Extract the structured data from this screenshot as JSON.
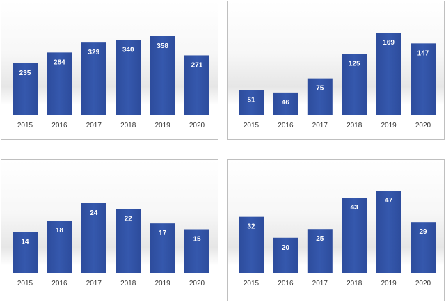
{
  "chart_data": [
    {
      "type": "bar",
      "categories": [
        "2015",
        "2016",
        "2017",
        "2018",
        "2019",
        "2020"
      ],
      "values": [
        235,
        284,
        329,
        340,
        358,
        271
      ],
      "ylim": [
        0,
        358
      ]
    },
    {
      "type": "bar",
      "categories": [
        "2015",
        "2016",
        "2017",
        "2018",
        "2019",
        "2020"
      ],
      "values": [
        51,
        46,
        75,
        125,
        169,
        147
      ],
      "ylim": [
        0,
        169
      ]
    },
    {
      "type": "bar",
      "categories": [
        "2015",
        "2016",
        "2017",
        "2018",
        "2019",
        "2020"
      ],
      "values": [
        14,
        18,
        24,
        22,
        17,
        15
      ],
      "ylim": [
        0,
        24
      ]
    },
    {
      "type": "bar",
      "categories": [
        "2015",
        "2016",
        "2017",
        "2018",
        "2019",
        "2020"
      ],
      "values": [
        32,
        20,
        25,
        43,
        47,
        29
      ],
      "ylim": [
        0,
        47
      ]
    }
  ],
  "colors": {
    "bar": "#3355a8",
    "bar_dark": "#2a4794",
    "label": "#ffffff",
    "tick": "#333333"
  }
}
